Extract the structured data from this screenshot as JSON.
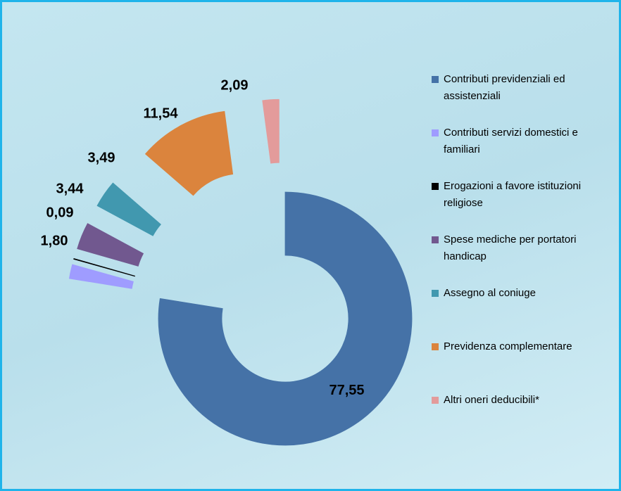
{
  "chart_data": {
    "type": "donut",
    "categories": [
      "Contributi previdenziali ed assistenziali",
      "Contributi servizi domestici e familiari",
      "Erogazioni a favore istituzioni religiose",
      "Spese mediche per portatori handicap",
      "Assegno al coniuge",
      "Previdenza complementare",
      "Altri oneri deducibili*"
    ],
    "values": [
      77.55,
      1.8,
      0.09,
      3.44,
      3.49,
      11.54,
      2.09
    ],
    "value_labels": [
      "77,55",
      "1,80",
      "0,09",
      "3,44",
      "3,49",
      "11,54",
      "2,09"
    ],
    "colors": [
      "#4572a7",
      "#9f9cff",
      "#000000",
      "#71588f",
      "#4198af",
      "#db843d",
      "#e39b9b"
    ],
    "legend": "right"
  }
}
